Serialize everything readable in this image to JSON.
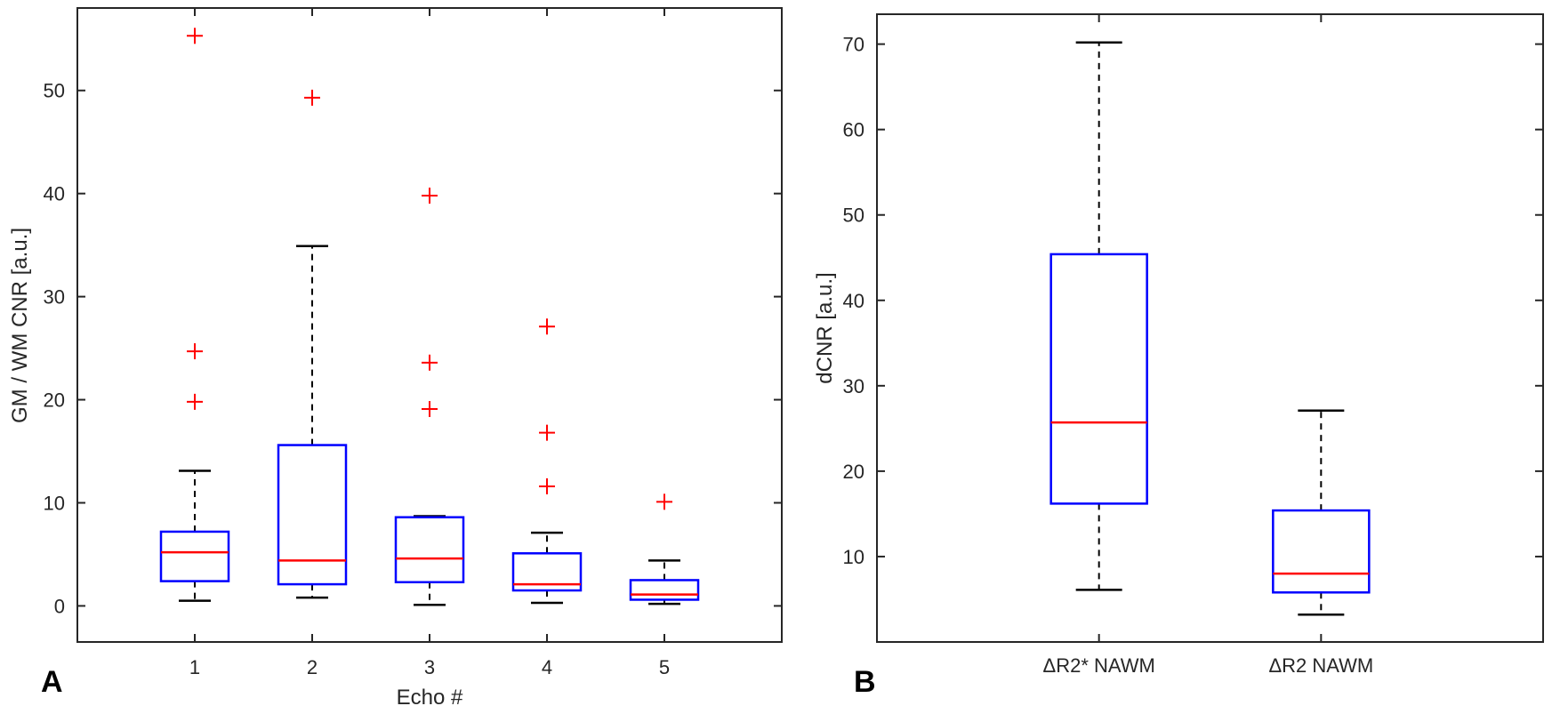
{
  "chart_data": [
    {
      "type": "box",
      "panel_label": "A",
      "title": "",
      "xlabel": "Echo #",
      "ylabel": "GM / WM CNR [a.u.]",
      "categories": [
        "1",
        "2",
        "3",
        "4",
        "5"
      ],
      "ylim": [
        -3.5,
        58
      ],
      "yticks": [
        0,
        10,
        20,
        30,
        40,
        50
      ],
      "ytick_labels": [
        "0",
        "10",
        "20",
        "30",
        "40",
        "50"
      ],
      "grid": false,
      "boxes": [
        {
          "min": 0.5,
          "q1": 2.4,
          "median": 5.2,
          "q3": 7.2,
          "max": 13.1,
          "outliers": [
            55.3,
            24.7,
            19.8
          ]
        },
        {
          "min": 0.8,
          "q1": 2.1,
          "median": 4.4,
          "q3": 15.6,
          "max": 34.9,
          "outliers": [
            49.3
          ]
        },
        {
          "min": 0.1,
          "q1": 2.3,
          "median": 4.6,
          "q3": 8.6,
          "max": 8.7,
          "outliers": [
            39.8,
            23.6,
            19.1
          ]
        },
        {
          "min": 0.3,
          "q1": 1.5,
          "median": 2.1,
          "q3": 5.1,
          "max": 7.1,
          "outliers": [
            27.1,
            16.8,
            11.6
          ]
        },
        {
          "min": 0.2,
          "q1": 0.6,
          "median": 1.1,
          "q3": 2.5,
          "max": 4.4,
          "outliers": [
            10.1
          ]
        }
      ],
      "colors": {
        "box": "#0000ff",
        "median": "#ff0000",
        "outlier": "#ff0000",
        "whisker": "#000000"
      }
    },
    {
      "type": "box",
      "panel_label": "B",
      "title": "",
      "xlabel": "",
      "ylabel": "dCNR [a.u.]",
      "categories": [
        "ΔR2* NAWM",
        "ΔR2 NAWM"
      ],
      "ylim": [
        0,
        73.5
      ],
      "yticks": [
        10,
        20,
        30,
        40,
        50,
        60,
        70
      ],
      "ytick_labels": [
        "10",
        "20",
        "30",
        "40",
        "50",
        "60",
        "70"
      ],
      "grid": false,
      "boxes": [
        {
          "min": 6.1,
          "q1": 16.2,
          "median": 25.7,
          "q3": 45.4,
          "max": 70.2,
          "outliers": []
        },
        {
          "min": 3.2,
          "q1": 5.8,
          "median": 8.0,
          "q3": 15.4,
          "max": 27.1,
          "outliers": []
        }
      ],
      "colors": {
        "box": "#0000ff",
        "median": "#ff0000",
        "outlier": "#ff0000",
        "whisker": "#000000"
      }
    }
  ]
}
